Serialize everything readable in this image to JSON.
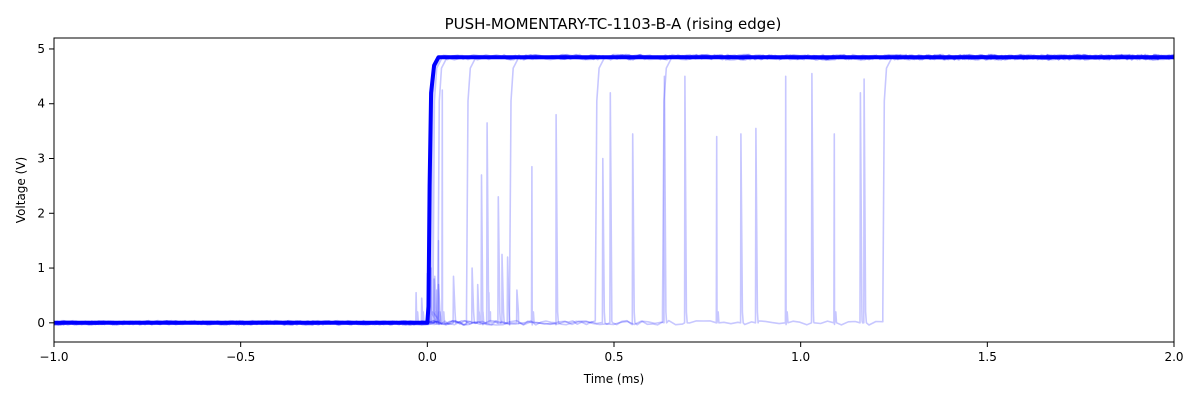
{
  "chart_data": {
    "type": "line",
    "title": "PUSH-MOMENTARY-TC-1103-B-A (rising edge)",
    "xlabel": "Time (ms)",
    "ylabel": "Voltage (V)",
    "xlim": [
      -1.0,
      2.0
    ],
    "ylim": [
      -0.35,
      5.2
    ],
    "xticks": [
      -1.0,
      -0.5,
      0.0,
      0.5,
      1.0,
      1.5,
      2.0
    ],
    "xtick_labels": [
      "−1.0",
      "−0.5",
      "0.0",
      "0.5",
      "1.0",
      "1.5",
      "2.0"
    ],
    "yticks": [
      0,
      1,
      2,
      3,
      4,
      5
    ],
    "ytick_labels": [
      "0",
      "1",
      "2",
      "3",
      "4",
      "5"
    ],
    "grid": false,
    "legend": "none",
    "low_level": 0.0,
    "high_level": 4.85,
    "main_color": "#0000ff",
    "trace_color": "#0000ff",
    "trace_opacity": 0.22,
    "series": [
      {
        "edge": 0.005,
        "bounces": [
          [
            -0.03,
            0.55
          ],
          [
            -0.015,
            0.45
          ]
        ]
      },
      {
        "edge": 0.01,
        "bounces": [
          [
            0.005,
            0.95
          ],
          [
            0.02,
            0.85
          ]
        ]
      },
      {
        "edge": 0.015,
        "bounces": [
          [
            0.0,
            0.9
          ],
          [
            0.03,
            0.7
          ]
        ]
      },
      {
        "edge": 0.028,
        "bounces": [
          [
            0.01,
            1.0
          ],
          [
            0.018,
            0.8
          ],
          [
            0.025,
            0.6
          ]
        ]
      },
      {
        "edge": 0.105,
        "bounces": [
          [
            0.04,
            4.25
          ],
          [
            0.03,
            1.5
          ],
          [
            0.07,
            0.85
          ]
        ]
      },
      {
        "edge": 0.22,
        "bounces": [
          [
            0.12,
            1.0
          ],
          [
            0.135,
            0.7
          ],
          [
            0.145,
            2.7
          ],
          [
            0.16,
            3.65
          ],
          [
            0.2,
            1.25
          ],
          [
            0.165,
            0.55
          ]
        ]
      },
      {
        "edge": 0.45,
        "bounces": [
          [
            0.19,
            2.3
          ],
          [
            0.215,
            1.2
          ],
          [
            0.28,
            2.85
          ],
          [
            0.24,
            0.6
          ]
        ]
      },
      {
        "edge": 0.63,
        "bounces": [
          [
            0.345,
            3.8
          ],
          [
            0.47,
            3.0
          ],
          [
            0.49,
            4.2
          ],
          [
            0.55,
            3.45
          ]
        ]
      },
      {
        "edge": 1.22,
        "bounces": [
          [
            0.635,
            4.5
          ],
          [
            0.69,
            4.5
          ],
          [
            0.775,
            3.4
          ],
          [
            0.84,
            3.45
          ],
          [
            0.88,
            3.55
          ],
          [
            0.96,
            4.5
          ],
          [
            1.03,
            4.55
          ],
          [
            1.09,
            3.45
          ],
          [
            1.17,
            4.45
          ],
          [
            1.16,
            4.2
          ]
        ]
      }
    ]
  }
}
